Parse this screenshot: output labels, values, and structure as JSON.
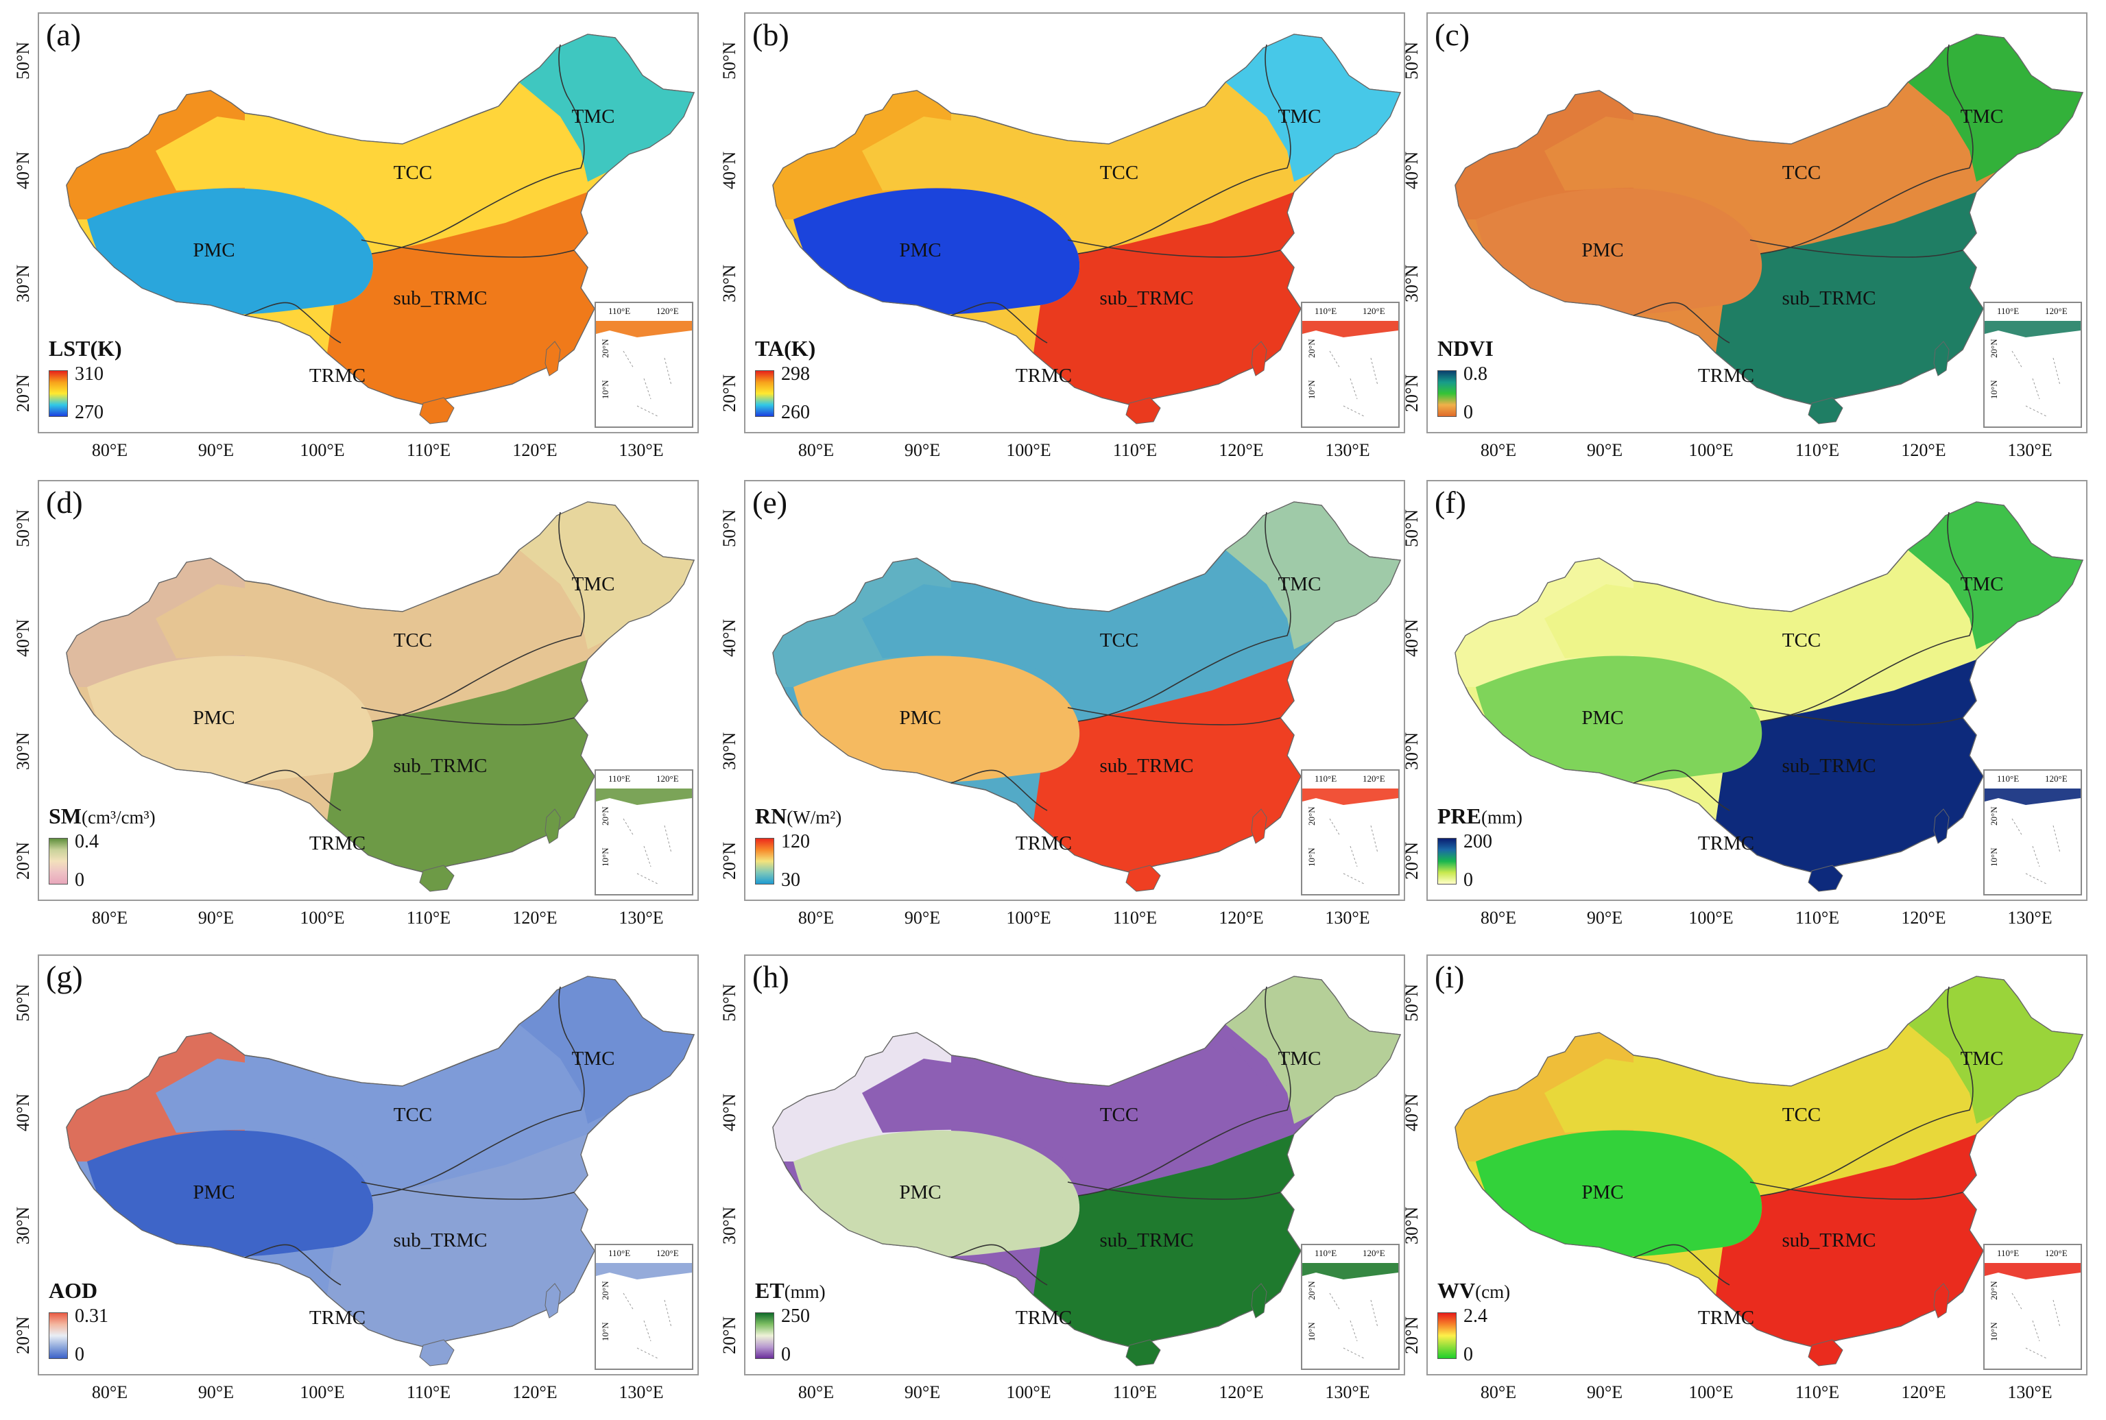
{
  "x_ticks": [
    "80°E",
    "90°E",
    "100°E",
    "110°E",
    "120°E",
    "130°E"
  ],
  "y_ticks": [
    "50°N",
    "40°N",
    "30°N",
    "20°N"
  ],
  "inset": {
    "x_ticks": [
      "110°E",
      "120°E"
    ],
    "y_ticks": [
      "20°N",
      "10°N"
    ]
  },
  "zones": [
    "TMC",
    "TCC",
    "PMC",
    "sub_TRMC",
    "TRMC"
  ],
  "panels": [
    {
      "label": "(a)",
      "legend_title": "LST(K)",
      "legend_unit": "",
      "legend_max": "310",
      "legend_min": "270",
      "palette": [
        "#e8231b",
        "#f7a21b",
        "#ffe930",
        "#31c8e6",
        "#1c3fe0"
      ],
      "colors": {
        "north": "#ffd53a",
        "west": "#f28a1c",
        "plateau": "#2aa6dc",
        "south": "#f07a1a",
        "northeast": "#3fc7c0"
      }
    },
    {
      "label": "(b)",
      "legend_title": "TA(K)",
      "legend_unit": "",
      "legend_max": "298",
      "legend_min": "260",
      "palette": [
        "#e8231b",
        "#f7a21b",
        "#ffe930",
        "#31c8e6",
        "#1c3fe0"
      ],
      "colors": {
        "north": "#f9c73a",
        "west": "#f5a623",
        "plateau": "#1b44dc",
        "south": "#ea3a1e",
        "northeast": "#47c8e8"
      }
    },
    {
      "label": "(c)",
      "legend_title": "NDVI",
      "legend_unit": "",
      "legend_max": "0.8",
      "legend_min": "0",
      "palette": [
        "#0c3f6e",
        "#179c8a",
        "#35c436",
        "#f0b04a",
        "#e06b2a"
      ],
      "colors": {
        "north": "#e58a3d",
        "west": "#e07a3a",
        "plateau": "#e38340",
        "south": "#1f7e64",
        "northeast": "#33b13a"
      }
    },
    {
      "label": "(d)",
      "legend_title": "SM",
      "legend_unit": "(cm³/cm³)",
      "legend_max": "0.4",
      "legend_min": "0",
      "palette": [
        "#5f8f3c",
        "#c9d29a",
        "#f3e1bc",
        "#eec2c5",
        "#e8a7bb"
      ],
      "colors": {
        "north": "#e6c593",
        "west": "#deb9a1",
        "plateau": "#eed6a4",
        "south": "#6d9a46",
        "northeast": "#e7d69d"
      }
    },
    {
      "label": "(e)",
      "legend_title": "RN",
      "legend_unit": "(W/m²)",
      "legend_max": "120",
      "legend_min": "30",
      "palette": [
        "#ec2a1c",
        "#f78a2a",
        "#f4e37c",
        "#7fc8b8",
        "#1e9bd2"
      ],
      "colors": {
        "north": "#53aac7",
        "west": "#62b1c2",
        "plateau": "#f5ba60",
        "south": "#ef3f22",
        "northeast": "#9fcaa8"
      }
    },
    {
      "label": "(f)",
      "legend_title": "PRE",
      "legend_unit": "(mm)",
      "legend_max": "200",
      "legend_min": "0",
      "palette": [
        "#0a1e72",
        "#1b6aa6",
        "#18b64f",
        "#c8e84e",
        "#ffffc8"
      ],
      "colors": {
        "north": "#eef58a",
        "west": "#f3f7a0",
        "plateau": "#7fd45a",
        "south": "#0d2a7c",
        "northeast": "#3fc14a"
      }
    },
    {
      "label": "(g)",
      "legend_title": "AOD",
      "legend_unit": "",
      "legend_max": "0.31",
      "legend_min": "0",
      "palette": [
        "#ea5b44",
        "#f3b7a0",
        "#e9eef5",
        "#8ea8dc",
        "#3c62c8"
      ],
      "colors": {
        "north": "#7e9bd8",
        "west": "#e86a4e",
        "plateau": "#3e65c8",
        "south": "#8aa2d6",
        "northeast": "#6f8fd4"
      }
    },
    {
      "label": "(h)",
      "legend_title": "ET",
      "legend_unit": "(mm)",
      "legend_max": "250",
      "legend_min": "0",
      "palette": [
        "#0f6b2a",
        "#7fbf64",
        "#eef2d8",
        "#b89ad0",
        "#6b2f9a"
      ],
      "colors": {
        "north": "#8d5fb4",
        "west": "#f4f2f6",
        "plateau": "#cbdcb0",
        "south": "#1f7a2e",
        "northeast": "#b5cf98"
      }
    },
    {
      "label": "(i)",
      "legend_title": "WV",
      "legend_unit": "(cm)",
      "legend_max": "2.4",
      "legend_min": "0",
      "palette": [
        "#e81c1a",
        "#f6832a",
        "#fdf04a",
        "#8bde3a",
        "#1fcf2c"
      ],
      "colors": {
        "north": "#e8d83a",
        "west": "#f0bb3a",
        "plateau": "#33d23a",
        "south": "#ea2c1e",
        "northeast": "#9ad43a"
      }
    }
  ]
}
